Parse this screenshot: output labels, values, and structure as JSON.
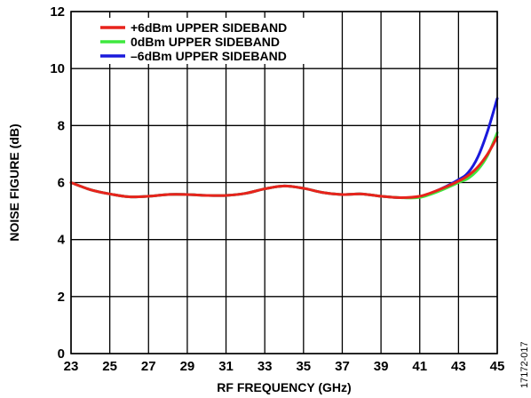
{
  "chart_data": {
    "type": "line",
    "title": "",
    "xlabel": "RF FREQUENCY (GHz)",
    "ylabel": "NOISE FIGURE (dB)",
    "xlim": [
      23,
      45
    ],
    "ylim": [
      0,
      12
    ],
    "xticks": [
      "23",
      "25",
      "27",
      "29",
      "31",
      "33",
      "35",
      "37",
      "39",
      "41",
      "43",
      "45"
    ],
    "yticks": [
      "0",
      "2",
      "4",
      "6",
      "8",
      "10",
      "12"
    ],
    "grid": true,
    "legend_position": "top-left",
    "series": [
      {
        "name": "+6dBm UPPER SIDEBAND",
        "color": "#e8231c",
        "points": [
          [
            23,
            6.0
          ],
          [
            24,
            5.75
          ],
          [
            25,
            5.6
          ],
          [
            26,
            5.5
          ],
          [
            27,
            5.52
          ],
          [
            28,
            5.58
          ],
          [
            29,
            5.58
          ],
          [
            30,
            5.55
          ],
          [
            31,
            5.55
          ],
          [
            32,
            5.62
          ],
          [
            33,
            5.78
          ],
          [
            34,
            5.88
          ],
          [
            35,
            5.8
          ],
          [
            36,
            5.65
          ],
          [
            37,
            5.58
          ],
          [
            38,
            5.6
          ],
          [
            39,
            5.52
          ],
          [
            40,
            5.47
          ],
          [
            41,
            5.52
          ],
          [
            42,
            5.75
          ],
          [
            43,
            6.05
          ],
          [
            43.5,
            6.25
          ],
          [
            44,
            6.55
          ],
          [
            44.5,
            7.0
          ],
          [
            45,
            7.6
          ]
        ]
      },
      {
        "name": "0dBm UPPER SIDEBAND",
        "color": "#3ee83e",
        "points": [
          [
            23,
            6.0
          ],
          [
            24,
            5.75
          ],
          [
            25,
            5.6
          ],
          [
            26,
            5.5
          ],
          [
            27,
            5.52
          ],
          [
            28,
            5.58
          ],
          [
            29,
            5.58
          ],
          [
            30,
            5.55
          ],
          [
            31,
            5.55
          ],
          [
            32,
            5.62
          ],
          [
            33,
            5.78
          ],
          [
            34,
            5.88
          ],
          [
            35,
            5.8
          ],
          [
            36,
            5.65
          ],
          [
            37,
            5.58
          ],
          [
            38,
            5.6
          ],
          [
            39,
            5.52
          ],
          [
            40,
            5.47
          ],
          [
            41,
            5.48
          ],
          [
            42,
            5.7
          ],
          [
            43,
            6.0
          ],
          [
            43.5,
            6.15
          ],
          [
            44,
            6.45
          ],
          [
            44.5,
            6.95
          ],
          [
            45,
            7.75
          ]
        ]
      },
      {
        "name": "–6dBm UPPER SIDEBAND",
        "color": "#1a1adc",
        "points": [
          [
            23,
            6.0
          ],
          [
            24,
            5.75
          ],
          [
            25,
            5.6
          ],
          [
            26,
            5.5
          ],
          [
            27,
            5.52
          ],
          [
            28,
            5.58
          ],
          [
            29,
            5.58
          ],
          [
            30,
            5.55
          ],
          [
            31,
            5.55
          ],
          [
            32,
            5.62
          ],
          [
            33,
            5.78
          ],
          [
            34,
            5.88
          ],
          [
            35,
            5.8
          ],
          [
            36,
            5.65
          ],
          [
            37,
            5.58
          ],
          [
            38,
            5.6
          ],
          [
            39,
            5.52
          ],
          [
            40,
            5.47
          ],
          [
            41,
            5.5
          ],
          [
            42,
            5.75
          ],
          [
            43,
            6.1
          ],
          [
            43.5,
            6.35
          ],
          [
            44,
            6.9
          ],
          [
            44.5,
            7.8
          ],
          [
            45,
            8.95
          ]
        ]
      }
    ],
    "figure_code": "17172-017"
  }
}
